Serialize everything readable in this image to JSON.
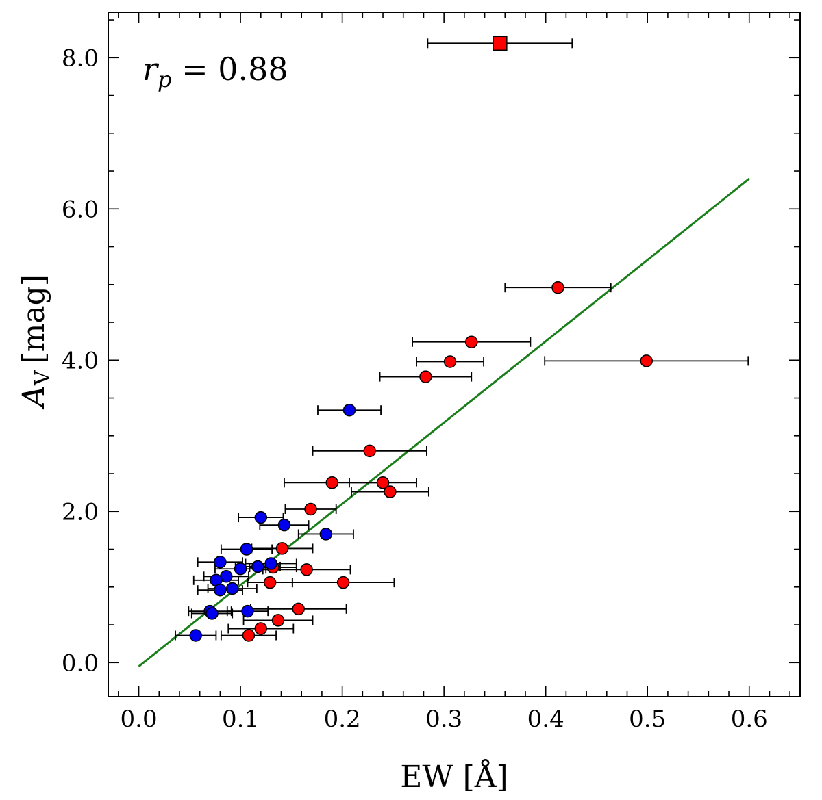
{
  "chart_data": {
    "type": "scatter",
    "xlabel": "EW [Å]",
    "ylabel_main": "A",
    "ylabel_sub": "V",
    "ylabel_unit": "[mag]",
    "xlim": [
      -0.03,
      0.65
    ],
    "ylim": [
      -0.45,
      8.6
    ],
    "xticks": [
      0.0,
      0.1,
      0.2,
      0.3,
      0.4,
      0.5,
      0.6
    ],
    "xtick_labels": [
      "0.0",
      "0.1",
      "0.2",
      "0.3",
      "0.4",
      "0.5",
      "0.6"
    ],
    "yticks": [
      0,
      2,
      4,
      6,
      8
    ],
    "ytick_labels": [
      "0.0",
      "2.0",
      "4.0",
      "6.0",
      "8.0"
    ],
    "annotation": {
      "symbol": "r",
      "subscript": "p",
      "text": " = 0.88"
    },
    "fit_line": {
      "name": "linear fit",
      "color": "#1a7f1a",
      "x": [
        0.0,
        0.6
      ],
      "y": [
        -0.05,
        6.4
      ]
    },
    "series": [
      {
        "name": "red points",
        "color": "#ff0000",
        "marker": "circle",
        "points": [
          {
            "x": 0.412,
            "y": 4.96,
            "xerr": 0.052
          },
          {
            "x": 0.327,
            "y": 4.24,
            "xerr": 0.058
          },
          {
            "x": 0.306,
            "y": 3.98,
            "xerr": 0.033
          },
          {
            "x": 0.499,
            "y": 3.99,
            "xerr": 0.1
          },
          {
            "x": 0.282,
            "y": 3.78,
            "xerr": 0.045
          },
          {
            "x": 0.227,
            "y": 2.8,
            "xerr": 0.056
          },
          {
            "x": 0.19,
            "y": 2.38,
            "xerr": 0.047
          },
          {
            "x": 0.24,
            "y": 2.38,
            "xerr": 0.033
          },
          {
            "x": 0.247,
            "y": 2.26,
            "xerr": 0.038
          },
          {
            "x": 0.169,
            "y": 2.03,
            "xerr": 0.025
          },
          {
            "x": 0.141,
            "y": 1.51,
            "xerr": 0.03
          },
          {
            "x": 0.132,
            "y": 1.26,
            "xerr": 0.023
          },
          {
            "x": 0.165,
            "y": 1.23,
            "xerr": 0.043
          },
          {
            "x": 0.129,
            "y": 1.06,
            "xerr": 0.022
          },
          {
            "x": 0.201,
            "y": 1.06,
            "xerr": 0.05
          },
          {
            "x": 0.157,
            "y": 0.71,
            "xerr": 0.047
          },
          {
            "x": 0.137,
            "y": 0.56,
            "xerr": 0.034
          },
          {
            "x": 0.12,
            "y": 0.45,
            "xerr": 0.032
          },
          {
            "x": 0.108,
            "y": 0.36,
            "xerr": 0.027
          }
        ]
      },
      {
        "name": "blue points",
        "color": "#0000ee",
        "marker": "circle",
        "points": [
          {
            "x": 0.207,
            "y": 3.34,
            "xerr": 0.031
          },
          {
            "x": 0.12,
            "y": 1.92,
            "xerr": 0.022
          },
          {
            "x": 0.143,
            "y": 1.82,
            "xerr": 0.024
          },
          {
            "x": 0.184,
            "y": 1.7,
            "xerr": 0.027
          },
          {
            "x": 0.106,
            "y": 1.5,
            "xerr": 0.025
          },
          {
            "x": 0.08,
            "y": 1.33,
            "xerr": 0.022
          },
          {
            "x": 0.13,
            "y": 1.31,
            "xerr": 0.025
          },
          {
            "x": 0.117,
            "y": 1.27,
            "xerr": 0.022
          },
          {
            "x": 0.1,
            "y": 1.24,
            "xerr": 0.025
          },
          {
            "x": 0.086,
            "y": 1.14,
            "xerr": 0.022
          },
          {
            "x": 0.076,
            "y": 1.09,
            "xerr": 0.022
          },
          {
            "x": 0.08,
            "y": 0.96,
            "xerr": 0.022
          },
          {
            "x": 0.092,
            "y": 0.98,
            "xerr": 0.024
          },
          {
            "x": 0.07,
            "y": 0.68,
            "xerr": 0.021
          },
          {
            "x": 0.072,
            "y": 0.65,
            "xerr": 0.02
          },
          {
            "x": 0.107,
            "y": 0.68,
            "xerr": 0.02
          },
          {
            "x": 0.056,
            "y": 0.36,
            "xerr": 0.02
          }
        ]
      },
      {
        "name": "outlier",
        "color": "#ff0000",
        "marker": "square",
        "points": [
          {
            "x": 0.355,
            "y": 8.19,
            "xerr": 0.071
          }
        ]
      }
    ]
  }
}
